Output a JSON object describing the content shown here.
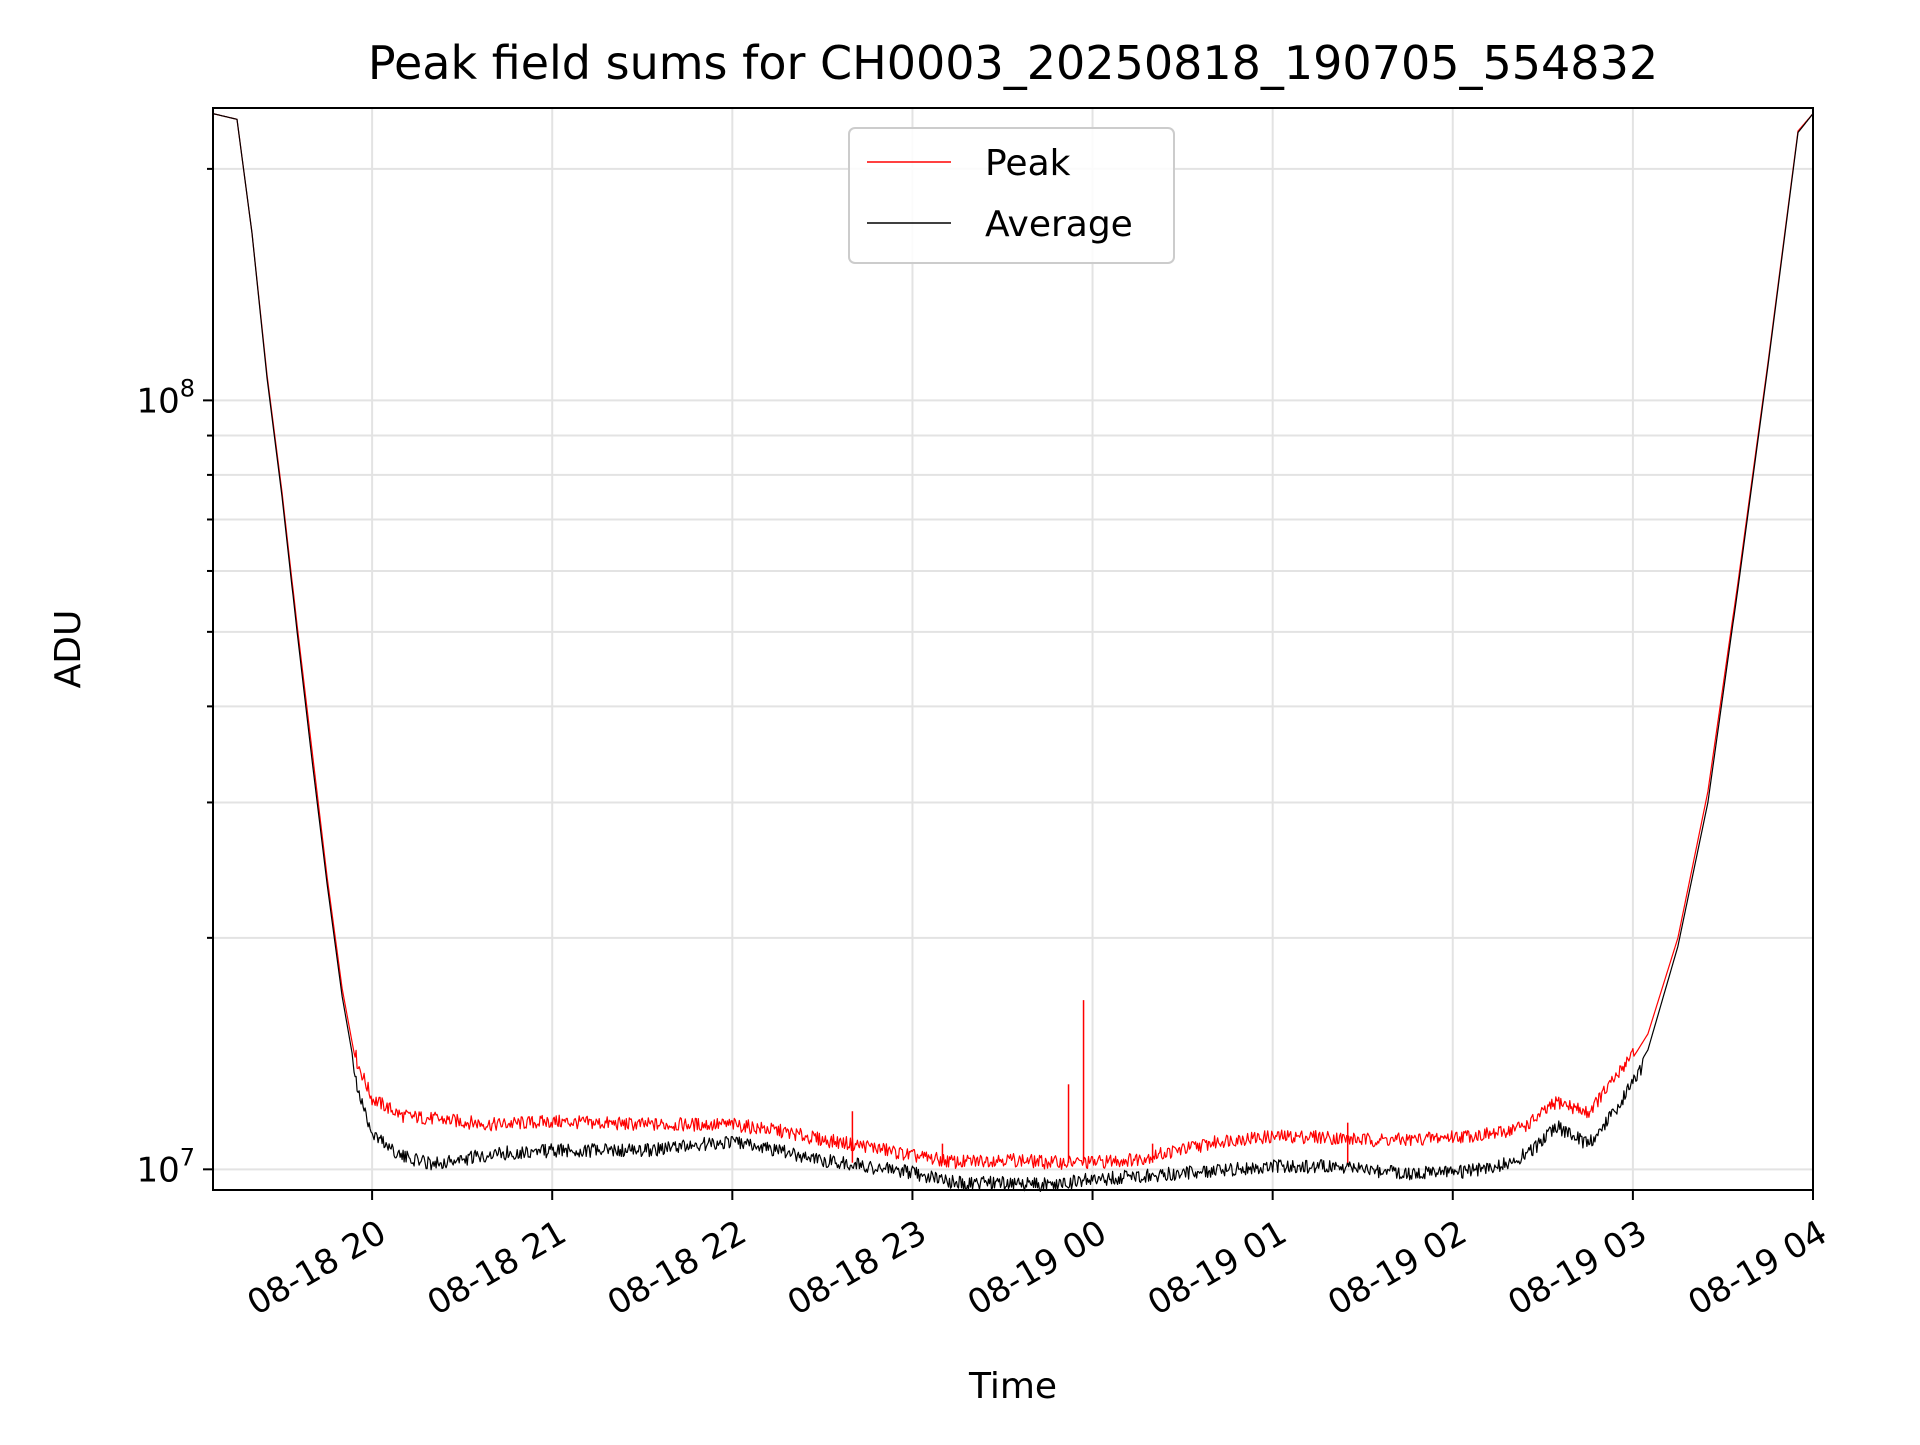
{
  "chart_data": {
    "type": "line",
    "title": "Peak field sums for CH0003_20250818_190705_554832",
    "xlabel": "Time",
    "ylabel": "ADU",
    "x_axis": {
      "kind": "datetime",
      "range": [
        "2025-08-18 19:07",
        "2025-08-19 04:00"
      ],
      "ticks": [
        {
          "value": "2025-08-18 20:00",
          "label": "08-18 20"
        },
        {
          "value": "2025-08-18 21:00",
          "label": "08-18 21"
        },
        {
          "value": "2025-08-18 22:00",
          "label": "08-18 22"
        },
        {
          "value": "2025-08-18 23:00",
          "label": "08-18 23"
        },
        {
          "value": "2025-08-19 00:00",
          "label": "08-19 00"
        },
        {
          "value": "2025-08-19 01:00",
          "label": "08-19 01"
        },
        {
          "value": "2025-08-19 02:00",
          "label": "08-19 02"
        },
        {
          "value": "2025-08-19 03:00",
          "label": "08-19 03"
        },
        {
          "value": "2025-08-19 04:00",
          "label": "08-19 04"
        }
      ]
    },
    "y_axis": {
      "scale": "log",
      "range": [
        9400000,
        240000000
      ],
      "major_ticks": [
        {
          "value": 10000000,
          "base": "10",
          "exp": "7"
        },
        {
          "value": 100000000,
          "base": "10",
          "exp": "8"
        }
      ]
    },
    "grid": true,
    "legend": {
      "position": "top-center"
    },
    "series": [
      {
        "name": "Peak",
        "color": "#ff0000",
        "points": [
          [
            "2025-08-18 19:07",
            236000000
          ],
          [
            "2025-08-18 19:15",
            232000000
          ],
          [
            "2025-08-18 19:20",
            165000000
          ],
          [
            "2025-08-18 19:25",
            108000000
          ],
          [
            "2025-08-18 19:30",
            76000000
          ],
          [
            "2025-08-18 19:35",
            51000000
          ],
          [
            "2025-08-18 19:40",
            35000000
          ],
          [
            "2025-08-18 19:45",
            24000000
          ],
          [
            "2025-08-18 19:50",
            17200000
          ],
          [
            "2025-08-18 19:55",
            13500000
          ],
          [
            "2025-08-18 20:00",
            12100000
          ],
          [
            "2025-08-18 20:10",
            11500000
          ],
          [
            "2025-08-18 20:20",
            11400000
          ],
          [
            "2025-08-18 20:30",
            11300000
          ],
          [
            "2025-08-18 20:40",
            11200000
          ],
          [
            "2025-08-18 21:00",
            11300000
          ],
          [
            "2025-08-18 21:30",
            11200000
          ],
          [
            "2025-08-18 22:00",
            11200000
          ],
          [
            "2025-08-18 22:15",
            11000000
          ],
          [
            "2025-08-18 22:30",
            10700000
          ],
          [
            "2025-08-18 22:45",
            10500000
          ],
          [
            "2025-08-18 23:00",
            10200000
          ],
          [
            "2025-08-18 23:15",
            10000000
          ],
          [
            "2025-08-18 23:30",
            10100000
          ],
          [
            "2025-08-18 23:45",
            10000000
          ],
          [
            "2025-08-19 00:00",
            10000000
          ],
          [
            "2025-08-19 00:15",
            10100000
          ],
          [
            "2025-08-19 00:30",
            10400000
          ],
          [
            "2025-08-19 00:45",
            10700000
          ],
          [
            "2025-08-19 01:00",
            10800000
          ],
          [
            "2025-08-19 01:15",
            10800000
          ],
          [
            "2025-08-19 01:30",
            10700000
          ],
          [
            "2025-08-19 01:45",
            10700000
          ],
          [
            "2025-08-19 02:00",
            10800000
          ],
          [
            "2025-08-19 02:15",
            10900000
          ],
          [
            "2025-08-19 02:25",
            11200000
          ],
          [
            "2025-08-19 02:35",
            12000000
          ],
          [
            "2025-08-19 02:45",
            11600000
          ],
          [
            "2025-08-19 02:55",
            13000000
          ],
          [
            "2025-08-19 03:05",
            15000000
          ],
          [
            "2025-08-19 03:15",
            20000000
          ],
          [
            "2025-08-19 03:25",
            31000000
          ],
          [
            "2025-08-19 03:35",
            58000000
          ],
          [
            "2025-08-19 03:45",
            112000000
          ],
          [
            "2025-08-19 03:55",
            224000000
          ],
          [
            "2025-08-19 04:00",
            236000000
          ]
        ],
        "spikes": [
          [
            "2025-08-18 22:40",
            11900000
          ],
          [
            "2025-08-18 23:10",
            10800000
          ],
          [
            "2025-08-18 23:52",
            12900000
          ],
          [
            "2025-08-18 23:57",
            16600000
          ],
          [
            "2025-08-19 00:20",
            10800000
          ],
          [
            "2025-08-19 01:25",
            11500000
          ]
        ]
      },
      {
        "name": "Average",
        "color": "#000000",
        "points": [
          [
            "2025-08-18 19:07",
            236000000
          ],
          [
            "2025-08-18 19:15",
            232000000
          ],
          [
            "2025-08-18 19:20",
            165000000
          ],
          [
            "2025-08-18 19:25",
            107000000
          ],
          [
            "2025-08-18 19:30",
            75000000
          ],
          [
            "2025-08-18 19:35",
            50000000
          ],
          [
            "2025-08-18 19:40",
            34000000
          ],
          [
            "2025-08-18 19:45",
            23500000
          ],
          [
            "2025-08-18 19:50",
            16800000
          ],
          [
            "2025-08-18 19:55",
            13000000
          ],
          [
            "2025-08-18 20:00",
            11400000
          ],
          [
            "2025-08-18 20:10",
            10600000
          ],
          [
            "2025-08-18 20:20",
            10400000
          ],
          [
            "2025-08-18 20:30",
            10500000
          ],
          [
            "2025-08-18 20:40",
            10700000
          ],
          [
            "2025-08-18 21:00",
            10800000
          ],
          [
            "2025-08-18 21:30",
            10800000
          ],
          [
            "2025-08-18 22:00",
            11100000
          ],
          [
            "2025-08-18 22:15",
            10800000
          ],
          [
            "2025-08-18 22:30",
            10500000
          ],
          [
            "2025-08-18 22:45",
            10300000
          ],
          [
            "2025-08-18 23:00",
            10100000
          ],
          [
            "2025-08-18 23:15",
            9800000
          ],
          [
            "2025-08-18 23:30",
            9800000
          ],
          [
            "2025-08-18 23:45",
            9750000
          ],
          [
            "2025-08-19 00:00",
            9900000
          ],
          [
            "2025-08-19 00:15",
            10000000
          ],
          [
            "2025-08-19 00:30",
            10100000
          ],
          [
            "2025-08-19 00:45",
            10200000
          ],
          [
            "2025-08-19 01:00",
            10300000
          ],
          [
            "2025-08-19 01:15",
            10300000
          ],
          [
            "2025-08-19 01:30",
            10200000
          ],
          [
            "2025-08-19 01:45",
            10100000
          ],
          [
            "2025-08-19 02:00",
            10100000
          ],
          [
            "2025-08-19 02:15",
            10300000
          ],
          [
            "2025-08-19 02:25",
            10700000
          ],
          [
            "2025-08-19 02:35",
            11600000
          ],
          [
            "2025-08-19 02:45",
            11000000
          ],
          [
            "2025-08-19 02:55",
            12300000
          ],
          [
            "2025-08-19 03:05",
            14300000
          ],
          [
            "2025-08-19 03:15",
            19500000
          ],
          [
            "2025-08-19 03:25",
            30000000
          ],
          [
            "2025-08-19 03:35",
            57000000
          ],
          [
            "2025-08-19 03:45",
            111000000
          ],
          [
            "2025-08-19 03:55",
            223000000
          ],
          [
            "2025-08-19 04:00",
            236000000
          ]
        ]
      }
    ]
  }
}
